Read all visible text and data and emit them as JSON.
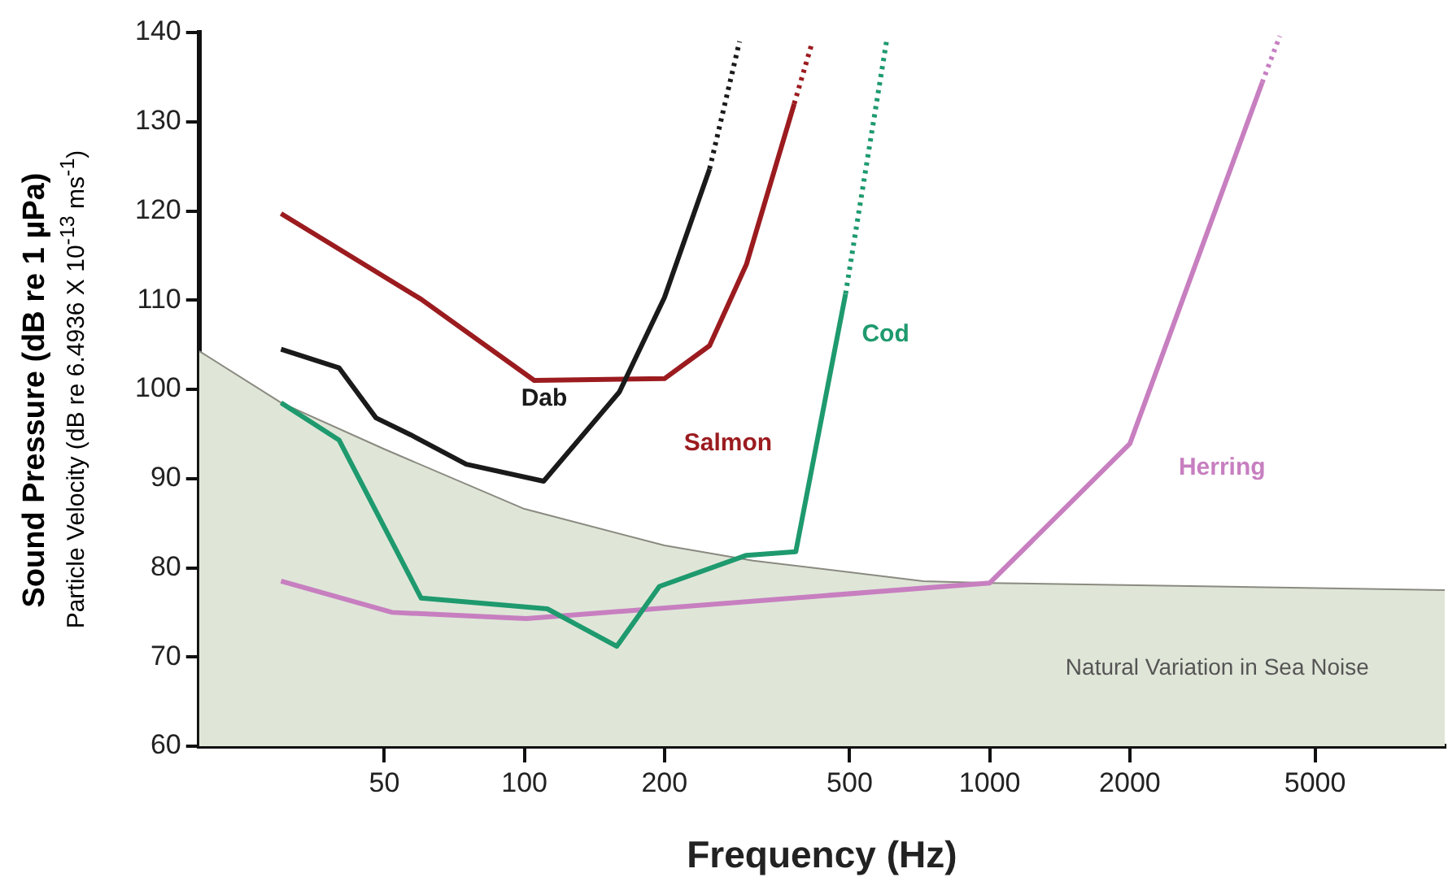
{
  "chart_data": {
    "type": "line",
    "xlabel": "Frequency (Hz)",
    "ylabel": "Sound Pressure (dB re 1 µPa)",
    "y2label": "Particle Velocity (dB re 6.4936 X 10$^{-13}$ ms$^{-1}$)",
    "log": "x",
    "xlim": [
      20,
      9500
    ],
    "xticks": [
      50,
      100,
      200,
      500,
      1000,
      2000,
      5000
    ],
    "ylim": [
      60,
      140
    ],
    "yticks": [
      60,
      70,
      80,
      90,
      100,
      110,
      120,
      130,
      140
    ],
    "grid": false,
    "legend": false,
    "marker": "none",
    "series": [
      {
        "type": "area",
        "name": "Natural Variation in Sea Noise",
        "color": "#dfe6d8",
        "x": [
          20,
          30,
          50,
          100,
          200,
          310,
          720,
          1000,
          9500
        ],
        "values": [
          104.3,
          98.5,
          93.3,
          86.6,
          82.5,
          80.8,
          78.5,
          78.3,
          77.5
        ]
      },
      {
        "name": "Dab",
        "color": "#1a1a1a",
        "x": [
          30,
          40,
          48,
          57,
          75,
          110,
          160,
          200,
          250
        ],
        "values": [
          104.5,
          102.4,
          96.8,
          94.9,
          91.6,
          89.7,
          99.7,
          110.3,
          124.7
        ]
      },
      {
        "color": "#1a1a1a",
        "line_style": "dotted",
        "x": [
          250,
          290
        ],
        "values": [
          124.7,
          139
        ]
      },
      {
        "name": "Salmon",
        "color": "#9b1b1f",
        "x": [
          30,
          60,
          105,
          200,
          250,
          300,
          380
        ],
        "values": [
          119.7,
          110.1,
          101,
          101.2,
          104.9,
          114,
          132
        ]
      },
      {
        "color": "#9b1b1f",
        "line_style": "dotted",
        "x": [
          380,
          416
        ],
        "values": [
          132,
          139
        ]
      },
      {
        "name": "Cod",
        "color": "#1e9a6e",
        "x": [
          30,
          40,
          60,
          112,
          158,
          195,
          300,
          383,
          490
        ],
        "values": [
          98.5,
          94.3,
          76.6,
          75.4,
          71.2,
          77.9,
          81.4,
          81.8,
          110.7
        ]
      },
      {
        "color": "#1e9a6e",
        "line_style": "dotted",
        "x": [
          490,
          600
        ],
        "values": [
          110.7,
          139
        ]
      },
      {
        "name": "Herring",
        "color": "#c77fc0",
        "x": [
          30,
          52,
          101,
          1000,
          2000,
          3850
        ],
        "values": [
          78.5,
          75,
          74.3,
          78.3,
          93.9,
          134.4
        ]
      },
      {
        "color": "#c77fc0",
        "line_style": "dotted",
        "x": [
          3850,
          4200
        ],
        "values": [
          134.4,
          139.6
        ]
      }
    ]
  }
}
